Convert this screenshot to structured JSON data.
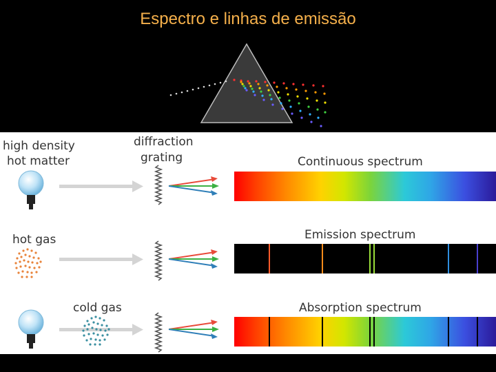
{
  "title": "Espectro e linhas de emissão",
  "labels": {
    "high_density": "high density",
    "hot_matter": "hot matter",
    "diffraction": "diffraction",
    "grating": "grating",
    "hot_gas": "hot gas",
    "cold_gas": "cold gas"
  },
  "spectra": {
    "continuous": "Continuous spectrum",
    "emission": "Emission spectrum",
    "absorption": "Absorption spectrum"
  },
  "colors": {
    "title": "#f5b04b",
    "hot_gas_dots": "#e8833a",
    "cold_gas_dots": "#3a8fa0"
  }
}
